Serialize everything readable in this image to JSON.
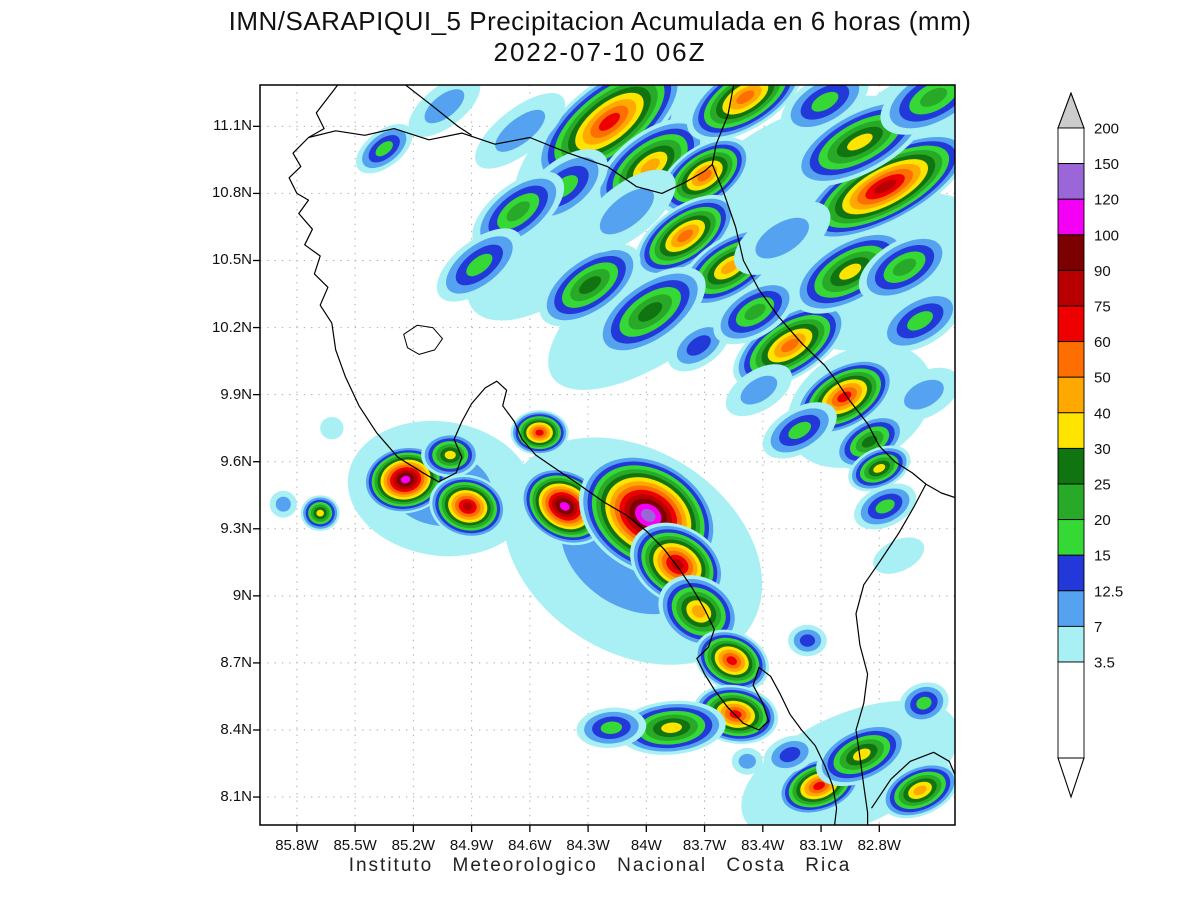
{
  "title": "IMN/SARAPIQUI_5 Precipitacion Acumulada en 6 horas (mm)",
  "subtitle": "2022-07-10 06Z",
  "footer": "Instituto Meteorologico Nacional Costa Rica",
  "chart_data": {
    "type": "heatmap",
    "title": "IMN/SARAPIQUI_5 Precipitacion Acumulada en 6 horas (mm)",
    "subtitle": "2022-07-10 06Z",
    "units": "mm",
    "grid": "dotted",
    "x_axis": {
      "range": [
        -85.99,
        -82.41
      ],
      "values": [
        -85.8,
        -85.5,
        -85.2,
        -84.9,
        -84.6,
        -84.3,
        -84.0,
        -83.7,
        -83.4,
        -83.1,
        -82.8
      ],
      "labels": [
        "85.8W",
        "85.5W",
        "85.2W",
        "84.9W",
        "84.6W",
        "84.3W",
        "84W",
        "83.7W",
        "83.4W",
        "83.1W",
        "82.8W"
      ]
    },
    "y_axis": {
      "range": [
        7.975,
        11.285
      ],
      "values": [
        8.1,
        8.4,
        8.7,
        9.0,
        9.3,
        9.6,
        9.9,
        10.2,
        10.5,
        10.8,
        11.1
      ],
      "labels": [
        "8.1N",
        "8.4N",
        "8.7N",
        "9N",
        "9.3N",
        "9.6N",
        "9.9N",
        "10.2N",
        "10.5N",
        "10.8N",
        "11.1N"
      ]
    },
    "colorbar": {
      "levels": [
        3.5,
        7,
        12.5,
        15,
        20,
        25,
        30,
        40,
        50,
        60,
        75,
        90,
        100,
        120,
        150,
        200
      ],
      "labels": [
        "3.5",
        "7",
        "12.5",
        "15",
        "20",
        "25",
        "30",
        "40",
        "50",
        "60",
        "75",
        "90",
        "100",
        "120",
        "150",
        "200"
      ],
      "band_colors": [
        "#a8f0f4",
        "#55a2f0",
        "#2238d8",
        "#35d835",
        "#28aa28",
        "#107510",
        "#ffe400",
        "#ffa800",
        "#ff6e00",
        "#ee0000",
        "#b80000",
        "#7d0000",
        "#f400f4",
        "#9a66d8",
        "#ffffff"
      ],
      "below_color": "#ffffff",
      "above_color": "#cccccc"
    },
    "coastlines": [
      [
        [
          -85.59,
          11.285
        ],
        [
          -85.7,
          11.16
        ],
        [
          -85.66,
          11.09
        ],
        [
          -85.74,
          11.05
        ],
        [
          -85.82,
          10.98
        ],
        [
          -85.78,
          10.92
        ],
        [
          -85.84,
          10.87
        ],
        [
          -85.8,
          10.8
        ],
        [
          -85.74,
          10.77
        ],
        [
          -85.79,
          10.71
        ],
        [
          -85.72,
          10.64
        ],
        [
          -85.76,
          10.57
        ],
        [
          -85.68,
          10.52
        ],
        [
          -85.71,
          10.44
        ],
        [
          -85.64,
          10.38
        ],
        [
          -85.68,
          10.3
        ],
        [
          -85.62,
          10.22
        ],
        [
          -85.6,
          10.1
        ],
        [
          -85.55,
          9.98
        ],
        [
          -85.48,
          9.85
        ],
        [
          -85.39,
          9.73
        ],
        [
          -85.28,
          9.62
        ],
        [
          -85.15,
          9.55
        ],
        [
          -85.07,
          9.51
        ],
        [
          -84.98,
          9.55
        ],
        [
          -84.95,
          9.62
        ],
        [
          -84.99,
          9.7
        ],
        [
          -84.95,
          9.78
        ],
        [
          -84.9,
          9.86
        ],
        [
          -84.83,
          9.93
        ],
        [
          -84.77,
          9.96
        ],
        [
          -84.72,
          9.92
        ],
        [
          -84.74,
          9.85
        ],
        [
          -84.68,
          9.78
        ],
        [
          -84.64,
          9.7
        ],
        [
          -84.57,
          9.63
        ],
        [
          -84.47,
          9.57
        ],
        [
          -84.35,
          9.5
        ],
        [
          -84.22,
          9.42
        ],
        [
          -84.1,
          9.36
        ],
        [
          -84.0,
          9.29
        ],
        [
          -83.91,
          9.21
        ],
        [
          -83.83,
          9.12
        ],
        [
          -83.76,
          9.03
        ],
        [
          -83.7,
          8.94
        ],
        [
          -83.65,
          8.85
        ],
        [
          -83.68,
          8.77
        ],
        [
          -83.74,
          8.72
        ],
        [
          -83.7,
          8.65
        ],
        [
          -83.65,
          8.58
        ],
        [
          -83.58,
          8.5
        ],
        [
          -83.5,
          8.43
        ],
        [
          -83.42,
          8.4
        ],
        [
          -83.37,
          8.44
        ],
        [
          -83.4,
          8.52
        ],
        [
          -83.45,
          8.6
        ],
        [
          -83.42,
          8.68
        ],
        [
          -83.36,
          8.64
        ],
        [
          -83.31,
          8.56
        ],
        [
          -83.26,
          8.47
        ],
        [
          -83.2,
          8.4
        ],
        [
          -83.13,
          8.33
        ],
        [
          -83.08,
          8.24
        ],
        [
          -83.04,
          8.15
        ],
        [
          -83.02,
          8.05
        ],
        [
          -83.03,
          7.975
        ]
      ],
      [
        [
          -85.74,
          11.05
        ],
        [
          -85.6,
          11.08
        ],
        [
          -85.45,
          11.06
        ],
        [
          -85.3,
          11.09
        ],
        [
          -85.12,
          11.04
        ],
        [
          -84.95,
          11.07
        ],
        [
          -84.78,
          11.02
        ],
        [
          -84.6,
          11.05
        ],
        [
          -84.4,
          10.98
        ],
        [
          -84.2,
          10.92
        ],
        [
          -84.05,
          10.83
        ],
        [
          -83.92,
          10.8
        ],
        [
          -83.8,
          10.85
        ],
        [
          -83.7,
          10.9
        ],
        [
          -83.66,
          10.93
        ]
      ],
      [
        [
          -83.55,
          11.285
        ],
        [
          -83.58,
          11.15
        ],
        [
          -83.64,
          11.02
        ],
        [
          -83.66,
          10.93
        ],
        [
          -83.6,
          10.8
        ],
        [
          -83.54,
          10.65
        ],
        [
          -83.5,
          10.5
        ],
        [
          -83.42,
          10.37
        ],
        [
          -83.32,
          10.25
        ],
        [
          -83.2,
          10.13
        ],
        [
          -83.08,
          10.03
        ],
        [
          -83.02,
          9.96
        ],
        [
          -82.95,
          9.87
        ],
        [
          -82.86,
          9.77
        ],
        [
          -82.8,
          9.67
        ],
        [
          -82.72,
          9.6
        ],
        [
          -82.63,
          9.55
        ],
        [
          -82.56,
          9.5
        ],
        [
          -82.48,
          9.46
        ],
        [
          -82.41,
          9.44
        ]
      ],
      [
        [
          -82.56,
          9.5
        ],
        [
          -82.62,
          9.4
        ],
        [
          -82.7,
          9.28
        ],
        [
          -82.8,
          9.15
        ],
        [
          -82.88,
          9.05
        ],
        [
          -82.92,
          8.92
        ],
        [
          -82.9,
          8.78
        ],
        [
          -82.86,
          8.65
        ],
        [
          -82.88,
          8.52
        ],
        [
          -82.92,
          8.4
        ],
        [
          -82.9,
          8.28
        ],
        [
          -82.88,
          8.15
        ],
        [
          -82.86,
          8.03
        ],
        [
          -82.86,
          7.975
        ]
      ],
      [
        [
          -82.84,
          8.05
        ],
        [
          -82.74,
          8.18
        ],
        [
          -82.64,
          8.26
        ],
        [
          -82.52,
          8.3
        ],
        [
          -82.44,
          8.26
        ],
        [
          -82.41,
          8.2
        ]
      ],
      [
        [
          -85.24,
          11.285
        ],
        [
          -85.1,
          11.19
        ],
        [
          -84.97,
          11.1
        ],
        [
          -84.9,
          11.06
        ]
      ]
    ],
    "lakes": [
      [
        [
          -85.25,
          10.17
        ],
        [
          -85.18,
          10.21
        ],
        [
          -85.1,
          10.2
        ],
        [
          -85.05,
          10.15
        ],
        [
          -85.09,
          10.1
        ],
        [
          -85.17,
          10.08
        ],
        [
          -85.23,
          10.11
        ]
      ]
    ],
    "cells": [
      [
        -84.16,
        11.03,
        0.62,
        0.26,
        -38,
        7
      ],
      [
        -83.26,
        10.77,
        0.8,
        0.34,
        -32,
        3.5
      ],
      [
        -82.75,
        10.45,
        0.55,
        0.3,
        -30,
        3.5
      ],
      [
        -83.95,
        10.3,
        0.65,
        0.24,
        -35,
        3.5
      ],
      [
        -84.5,
        10.55,
        0.5,
        0.22,
        -38,
        3.5
      ],
      [
        -82.9,
        9.85,
        0.4,
        0.25,
        -30,
        3.5
      ],
      [
        -84.07,
        9.2,
        0.72,
        0.45,
        33,
        7
      ],
      [
        -85.06,
        9.48,
        0.48,
        0.3,
        8,
        7
      ],
      [
        -82.95,
        8.22,
        0.6,
        0.25,
        -24,
        3.5
      ],
      [
        -82.6,
        11.1,
        0.45,
        0.22,
        -30,
        3.5
      ],
      [
        -84.19,
        11.12,
        0.46,
        0.18,
        -38,
        60
      ],
      [
        -83.98,
        10.92,
        0.34,
        0.15,
        -38,
        40
      ],
      [
        -84.42,
        10.83,
        0.26,
        0.12,
        -38,
        15
      ],
      [
        -83.7,
        10.88,
        0.27,
        0.13,
        -35,
        50
      ],
      [
        -83.49,
        11.23,
        0.34,
        0.14,
        -32,
        50
      ],
      [
        -82.77,
        10.83,
        0.48,
        0.16,
        -28,
        75
      ],
      [
        -82.9,
        11.03,
        0.38,
        0.14,
        -28,
        30
      ],
      [
        -82.52,
        11.23,
        0.3,
        0.13,
        -28,
        20
      ],
      [
        -83.08,
        11.21,
        0.25,
        0.11,
        -30,
        15
      ],
      [
        -83.8,
        10.61,
        0.3,
        0.13,
        -35,
        50
      ],
      [
        -83.57,
        10.47,
        0.3,
        0.13,
        -33,
        40
      ],
      [
        -84.66,
        10.72,
        0.28,
        0.12,
        -38,
        20
      ],
      [
        -84.86,
        10.48,
        0.26,
        0.11,
        -38,
        15
      ],
      [
        -85.04,
        11.19,
        0.22,
        0.09,
        -38,
        7
      ],
      [
        -85.35,
        11.0,
        0.17,
        0.08,
        -38,
        15
      ],
      [
        -84.29,
        10.39,
        0.3,
        0.13,
        -35,
        25
      ],
      [
        -83.98,
        10.27,
        0.33,
        0.14,
        -35,
        25
      ],
      [
        -83.73,
        10.12,
        0.18,
        0.09,
        -35,
        12.5
      ],
      [
        -83.26,
        10.12,
        0.33,
        0.14,
        -32,
        50
      ],
      [
        -83.44,
        10.27,
        0.24,
        0.11,
        -32,
        20
      ],
      [
        -82.95,
        10.45,
        0.33,
        0.14,
        -30,
        30
      ],
      [
        -82.67,
        10.47,
        0.26,
        0.12,
        -30,
        20
      ],
      [
        -82.59,
        10.23,
        0.24,
        0.11,
        -30,
        15
      ],
      [
        -82.98,
        9.89,
        0.28,
        0.14,
        -30,
        60
      ],
      [
        -82.85,
        9.69,
        0.2,
        0.1,
        -30,
        25
      ],
      [
        -82.8,
        9.57,
        0.17,
        0.09,
        -25,
        30
      ],
      [
        -82.77,
        9.4,
        0.17,
        0.09,
        -25,
        15
      ],
      [
        -83.21,
        9.74,
        0.21,
        0.1,
        -30,
        15
      ],
      [
        -83.42,
        9.92,
        0.19,
        0.09,
        -32,
        7
      ],
      [
        -84.55,
        9.73,
        0.15,
        0.1,
        0,
        60
      ],
      [
        -84.42,
        9.4,
        0.24,
        0.16,
        30,
        100
      ],
      [
        -83.99,
        9.36,
        0.38,
        0.25,
        32,
        120
      ],
      [
        -83.84,
        9.14,
        0.26,
        0.17,
        32,
        75
      ],
      [
        -83.73,
        8.93,
        0.22,
        0.15,
        32,
        40
      ],
      [
        -83.56,
        8.71,
        0.2,
        0.13,
        25,
        60
      ],
      [
        -83.54,
        8.47,
        0.22,
        0.13,
        10,
        60
      ],
      [
        -83.87,
        8.41,
        0.28,
        0.12,
        -5,
        30
      ],
      [
        -84.18,
        8.41,
        0.18,
        0.09,
        -5,
        15
      ],
      [
        -85.24,
        9.52,
        0.22,
        0.15,
        -10,
        100
      ],
      [
        -84.92,
        9.4,
        0.2,
        0.14,
        15,
        75
      ],
      [
        -85.01,
        9.63,
        0.15,
        0.1,
        0,
        30
      ],
      [
        -85.68,
        9.37,
        0.1,
        0.08,
        0,
        30
      ],
      [
        -85.87,
        9.41,
        0.07,
        0.06,
        0,
        7
      ],
      [
        -83.11,
        8.15,
        0.22,
        0.12,
        -20,
        60
      ],
      [
        -82.89,
        8.29,
        0.25,
        0.12,
        -24,
        30
      ],
      [
        -82.59,
        8.13,
        0.21,
        0.11,
        -24,
        40
      ],
      [
        -82.57,
        8.52,
        0.13,
        0.09,
        -20,
        15
      ],
      [
        -83.26,
        8.29,
        0.14,
        0.08,
        -20,
        12.5
      ],
      [
        -83.48,
        8.26,
        0.08,
        0.06,
        0,
        7
      ],
      [
        -83.17,
        8.8,
        0.1,
        0.07,
        0,
        12.5
      ],
      [
        -84.65,
        10.32,
        0.06,
        0.05,
        0,
        3.5
      ],
      [
        -85.62,
        9.75,
        0.06,
        0.05,
        0,
        3.5
      ],
      [
        -84.65,
        11.08,
        0.28,
        0.1,
        -38,
        7
      ],
      [
        -82.7,
        9.18,
        0.14,
        0.07,
        -25,
        3.5
      ],
      [
        -83.3,
        10.6,
        0.28,
        0.12,
        -32,
        7
      ],
      [
        -84.1,
        10.72,
        0.3,
        0.12,
        -38,
        7
      ],
      [
        -82.57,
        9.9,
        0.2,
        0.1,
        -28,
        7
      ]
    ]
  }
}
